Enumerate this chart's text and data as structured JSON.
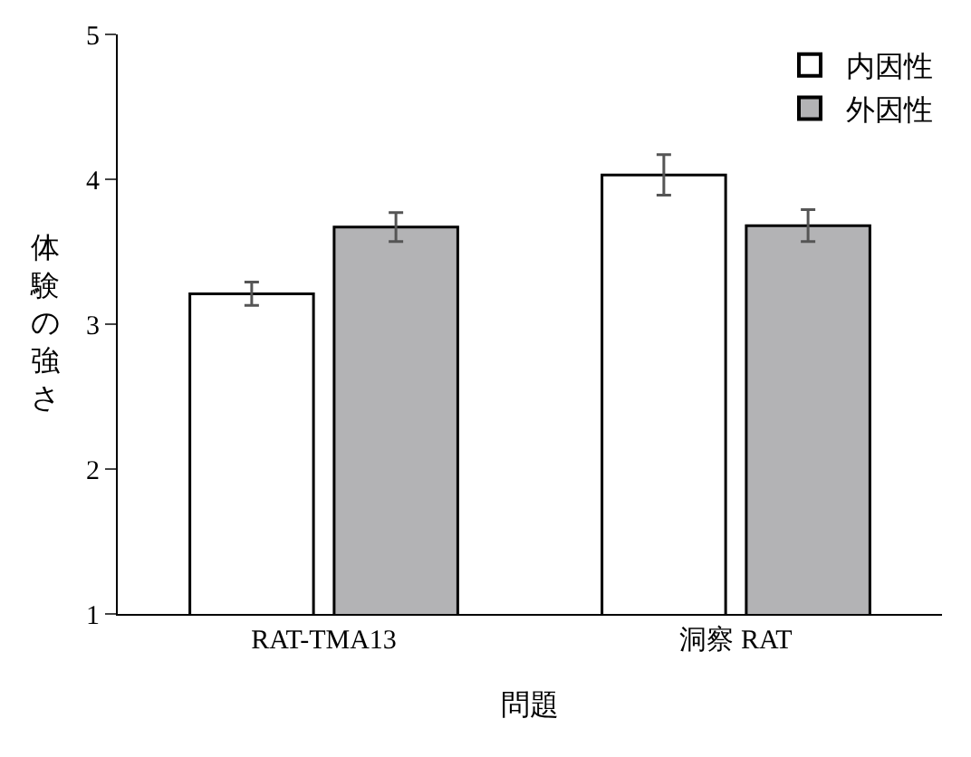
{
  "chart_data": {
    "type": "bar",
    "xlabel": "問題",
    "ylabel": "体験の強さ",
    "categories": [
      "RAT-TMA13",
      "洞察 RAT"
    ],
    "series": [
      {
        "name": "内因性",
        "color": "#ffffff",
        "values": [
          3.21,
          4.03
        ],
        "errors": [
          0.08,
          0.14
        ]
      },
      {
        "name": "外因性",
        "color": "#b3b3b5",
        "values": [
          3.67,
          3.68
        ],
        "errors": [
          0.1,
          0.11
        ]
      }
    ],
    "ylim": [
      1,
      5
    ],
    "yticks": [
      1,
      2,
      3,
      4,
      5
    ],
    "legend": "top right"
  }
}
